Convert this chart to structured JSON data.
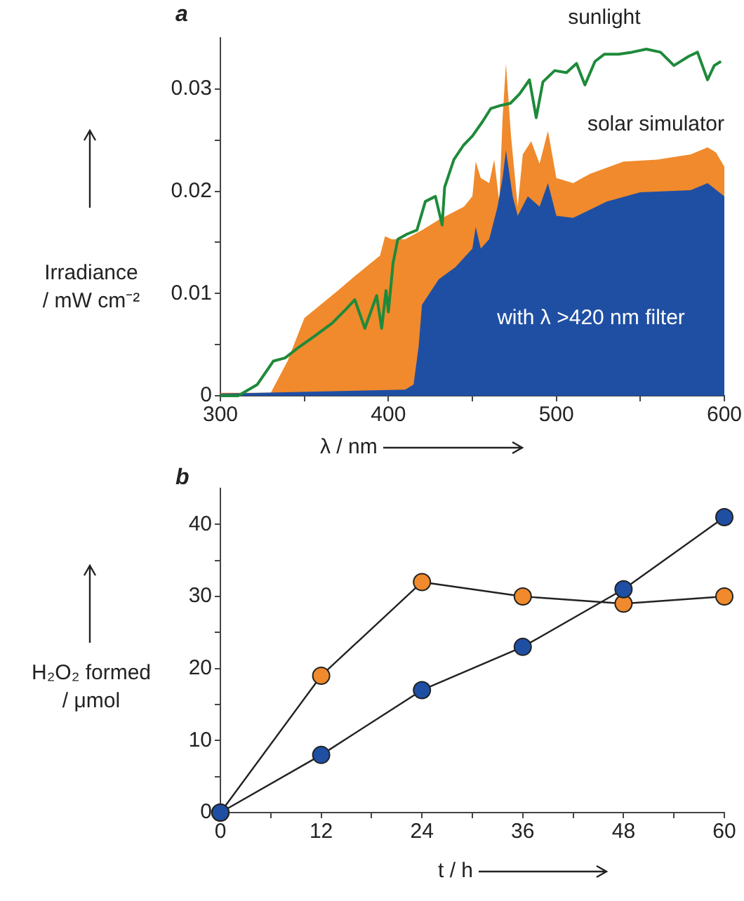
{
  "chart_data": [
    {
      "type": "area",
      "title": "a",
      "xlabel": "λ / nm",
      "ylabel": "Irradiance\n/ mW cm⁻²",
      "xlim": [
        300,
        600
      ],
      "xticks": [
        300,
        {
          "value": 350,
          "label": null
        },
        400,
        {
          "value": 450,
          "label": null
        },
        500,
        {
          "value": 550,
          "label": null
        },
        600
      ],
      "ylim": [
        0,
        0.035
      ],
      "yticks": [
        0,
        {
          "value": 0.005,
          "label": null
        },
        0.01,
        {
          "value": 0.015,
          "label": null
        },
        0.02,
        {
          "value": 0.025,
          "label": null
        },
        0.03
      ],
      "grid": false,
      "legend": false,
      "marker": "none",
      "series": [
        {
          "name": "solar simulator",
          "color": "#f08a2c",
          "x": [
            300,
            330,
            340,
            350,
            370,
            380,
            395,
            398,
            402,
            410,
            420,
            430,
            445,
            450,
            452,
            455,
            460,
            463,
            466,
            468,
            470,
            473,
            477,
            480,
            485,
            490,
            495,
            500,
            510,
            520,
            540,
            560,
            580,
            590,
            595,
            600
          ],
          "values": [
            0.0003,
            0.0003,
            0.0034,
            0.0076,
            0.0103,
            0.0117,
            0.0137,
            0.0156,
            0.0153,
            0.0153,
            0.0162,
            0.0172,
            0.0185,
            0.0195,
            0.0229,
            0.0213,
            0.0208,
            0.0231,
            0.019,
            0.0272,
            0.0325,
            0.0254,
            0.0185,
            0.0236,
            0.0249,
            0.0227,
            0.0259,
            0.0213,
            0.0208,
            0.0217,
            0.0229,
            0.0231,
            0.0236,
            0.0243,
            0.0238,
            0.0224
          ]
        },
        {
          "name": "with λ >420 nm filter",
          "color": "#1f4fa3",
          "x": [
            300,
            410,
            415,
            418,
            420,
            430,
            440,
            450,
            452,
            455,
            460,
            465,
            468,
            470,
            474,
            477,
            483,
            490,
            495,
            500,
            510,
            530,
            550,
            580,
            590,
            600
          ],
          "values": [
            0.0002,
            0.0006,
            0.0011,
            0.0048,
            0.0089,
            0.0114,
            0.0126,
            0.0144,
            0.0165,
            0.0144,
            0.0153,
            0.0185,
            0.0213,
            0.024,
            0.0195,
            0.0176,
            0.0195,
            0.0185,
            0.0208,
            0.0176,
            0.0174,
            0.019,
            0.0199,
            0.0201,
            0.0208,
            0.0195
          ]
        },
        {
          "name": "sunlight",
          "type": "line",
          "color": "#1e8a3a",
          "x": [
            300,
            310.6,
            322,
            331.6,
            338.5,
            345.5,
            355,
            366.5,
            375,
            380,
            386,
            393,
            396,
            398.6,
            400,
            402.8,
            405.6,
            411,
            417,
            422,
            428,
            432,
            433.5,
            439,
            444.7,
            450,
            456,
            461,
            467,
            472.6,
            478,
            484,
            488,
            492,
            499,
            506,
            512,
            517,
            523,
            528.5,
            537,
            545,
            553.6,
            562,
            570,
            578.8,
            584,
            590,
            594,
            598
          ],
          "values": [
            0,
            0,
            0.0011,
            0.0034,
            0.0037,
            0.0046,
            0.0057,
            0.0071,
            0.0085,
            0.0094,
            0.0066,
            0.0098,
            0.0066,
            0.0103,
            0.0082,
            0.013,
            0.0153,
            0.0158,
            0.0162,
            0.019,
            0.0195,
            0.0167,
            0.0204,
            0.0231,
            0.0245,
            0.0254,
            0.0268,
            0.0281,
            0.0284,
            0.0286,
            0.0295,
            0.0309,
            0.0272,
            0.0307,
            0.0318,
            0.0316,
            0.0325,
            0.0304,
            0.0327,
            0.0334,
            0.0334,
            0.0336,
            0.0339,
            0.0336,
            0.0323,
            0.0332,
            0.0336,
            0.0309,
            0.0323,
            0.0327
          ]
        }
      ]
    },
    {
      "type": "line",
      "title": "b",
      "xlabel": "t / h",
      "ylabel": "H₂O₂ formed\n/ μmol",
      "x": [
        0,
        12,
        24,
        36,
        48,
        60
      ],
      "xlim": [
        0,
        60
      ],
      "xticks": [
        0,
        {
          "value": 6,
          "label": null
        },
        12,
        {
          "value": 18,
          "label": null
        },
        24,
        {
          "value": 30,
          "label": null
        },
        36,
        {
          "value": 42,
          "label": null
        },
        48,
        {
          "value": 54,
          "label": null
        },
        60
      ],
      "ylim": [
        0,
        45
      ],
      "yticks": [
        0,
        {
          "value": 5,
          "label": null
        },
        10,
        {
          "value": 15,
          "label": null
        },
        20,
        {
          "value": 25,
          "label": null
        },
        30,
        {
          "value": 35,
          "label": null
        },
        40
      ],
      "grid": false,
      "legend": false,
      "marker": "circle",
      "series": [
        {
          "color": "#f08a2c",
          "values": [
            0,
            19,
            32,
            30,
            29,
            30
          ]
        },
        {
          "color": "#1f4fa3",
          "values": [
            0,
            8,
            17,
            23,
            31,
            41
          ]
        }
      ]
    }
  ]
}
